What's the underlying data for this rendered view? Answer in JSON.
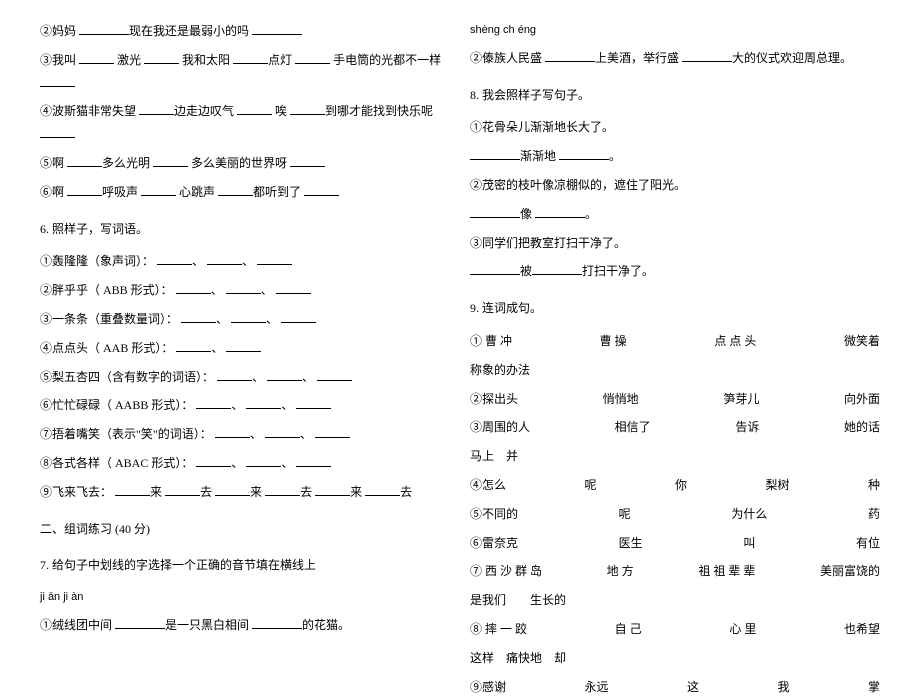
{
  "left": {
    "q2": {
      "a": "②妈妈",
      "b": "现在我还是最弱小的吗"
    },
    "q3": {
      "a": "③我叫",
      "b": "激光",
      "c": "我和太阳",
      "d": "点灯",
      "e": "手电筒的光都不一样"
    },
    "q4": {
      "a": "④波斯猫非常失望",
      "b": "边走边叹气",
      "c": "唉",
      "d": "到哪才能找到快乐呢"
    },
    "q5": {
      "a": "⑤啊",
      "b": "多么光明",
      "c": "多么美丽的世界呀"
    },
    "q6": {
      "a": "⑥啊",
      "b": "呼吸声",
      "c": "心跳声",
      "d": "都听到了"
    },
    "sec6_title": "6.  照样子，写词语。",
    "sec6": {
      "l1": "①轰隆隆（象声词）：",
      "l2": "②胖乎乎（ ABB 形式）：",
      "l3": "③一条条（重叠数量词）：",
      "l4": "④点点头（ AAB 形式）：",
      "l5": "⑤梨五杏四（含有数字的词语）：",
      "l6": "⑥忙忙碌碌（ AABB 形式）：",
      "l7": "⑦捂着嘴笑（表示\"笑\"的词语）：",
      "l8": "⑧各式各样（ ABAC 形式）：",
      "l9a": "⑨飞来飞去：",
      "l9b": "来",
      "l9c": "去",
      "l9d": "来",
      "l9e": "去",
      "l9f": "来",
      "l9g": "去"
    },
    "sec2_title": "二、组词练习  (40 分)",
    "sec7_title": "7.  给句子中划线的字选择一个正确的音节填在横线上",
    "pinyin1": "ji ān ji    àn",
    "q7_1": {
      "a": "①绒线团中间",
      "b": "是一只黑白相间",
      "c": "的花猫。"
    }
  },
  "right": {
    "pinyin2": "shèng ch éng",
    "q7_2": {
      "a": "②傣族人民盛",
      "b": "上美酒，举行盛",
      "c": "大的仪式欢迎周总理。"
    },
    "sec8_title": "8.  我会照样子写句子。",
    "q8_1a": "①花骨朵儿渐渐地长大了。",
    "q8_1b": "渐渐地",
    "q8_2a": "②茂密的枝叶像凉棚似的，遮住了阳光。",
    "q8_2b": "像",
    "q8_3a": "③同学们把教室打扫干净了。",
    "q8_3b_a": "被",
    "q8_3b_b": "打扫干净了。",
    "sec9_title": "9.  连词成句。",
    "w1": [
      "① 曹 冲",
      "曹 操",
      "点 点 头",
      "微笑着",
      "称象的办法"
    ],
    "w2": [
      "②探出头",
      "悄悄地",
      "笋芽儿",
      "向外面"
    ],
    "w3": [
      "③周围的人",
      "相信了",
      "告诉",
      "她的话",
      "马上",
      "并"
    ],
    "w4": [
      "④怎么",
      "呢",
      "你",
      "梨树",
      "种"
    ],
    "w5": [
      "⑤不同的",
      "呢",
      "为什么",
      "药"
    ],
    "w6": [
      "⑥雷奈克",
      "医生",
      "叫",
      "有位"
    ],
    "w7": [
      "⑦ 西 沙 群 岛",
      "地 方",
      "祖 祖 辈 辈",
      "美丽富饶的",
      "是我们",
      "生长的"
    ],
    "w8": [
      "⑧ 摔 一 跤",
      "自 己",
      "心 里",
      "也希望",
      "这样",
      "痛快地",
      "却"
    ],
    "w9": [
      "⑨感谢",
      "永远",
      "这",
      "我",
      "掌"
    ]
  },
  "colors": {
    "text": "#000000",
    "bg": "#ffffff"
  },
  "typography": {
    "body_fontsize": 12,
    "line_height": 1.9
  }
}
